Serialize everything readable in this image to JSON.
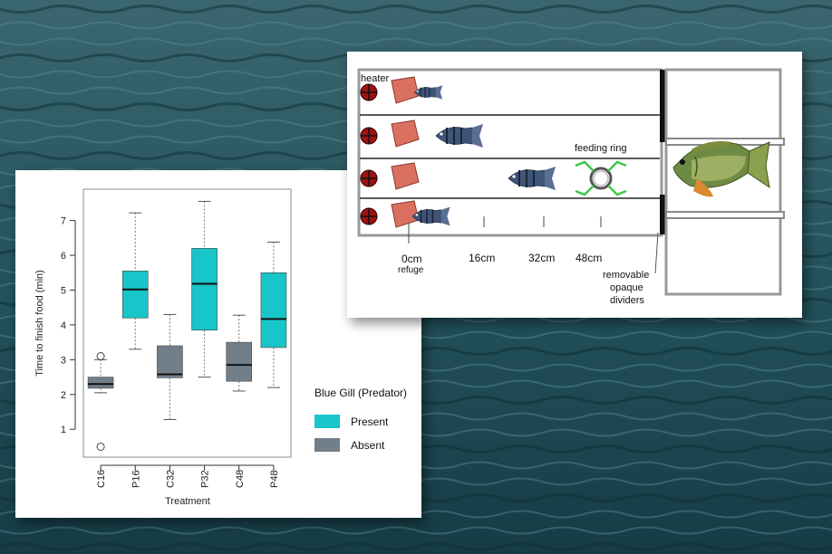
{
  "colors": {
    "present": "#18c5c8",
    "absent": "#717f8b",
    "water_dark": "#173f4a",
    "water_light": "#3c6b74",
    "ring_lines": "#3ec84a",
    "refuge": "#d97060",
    "heater": "#9c1313"
  },
  "chart_data": {
    "type": "box",
    "xlabel": "Treatment",
    "ylabel": "Time to finish food (min)",
    "ylim": [
      0.2,
      7.9
    ],
    "yticks": [
      1,
      2,
      3,
      4,
      5,
      6,
      7
    ],
    "grid": false,
    "legend_position": "right",
    "legend": {
      "title": "Blue Gill (Predator)",
      "entries": [
        {
          "label": "Present",
          "color": "#18c5c8"
        },
        {
          "label": "Absent",
          "color": "#717f8b"
        }
      ]
    },
    "boxes": [
      {
        "category": "C16",
        "group": "Absent",
        "whisker_low": 2.05,
        "q1": 2.18,
        "median": 2.3,
        "q3": 2.5,
        "whisker_high": 3.0,
        "outliers": [
          3.1,
          0.5
        ]
      },
      {
        "category": "P16",
        "group": "Present",
        "whisker_low": 3.3,
        "q1": 4.2,
        "median": 5.02,
        "q3": 5.55,
        "whisker_high": 7.22,
        "outliers": []
      },
      {
        "category": "C32",
        "group": "Absent",
        "whisker_low": 1.28,
        "q1": 2.48,
        "median": 2.58,
        "q3": 3.4,
        "whisker_high": 4.3,
        "outliers": []
      },
      {
        "category": "P32",
        "group": "Present",
        "whisker_low": 2.5,
        "q1": 3.85,
        "median": 5.18,
        "q3": 6.2,
        "whisker_high": 7.55,
        "outliers": []
      },
      {
        "category": "C48",
        "group": "Absent",
        "whisker_low": 2.1,
        "q1": 2.38,
        "median": 2.85,
        "q3": 3.5,
        "whisker_high": 4.28,
        "outliers": []
      },
      {
        "category": "P48",
        "group": "Present",
        "whisker_low": 2.2,
        "q1": 3.35,
        "median": 4.17,
        "q3": 5.5,
        "whisker_high": 6.38,
        "outliers": []
      }
    ]
  },
  "diagram": {
    "labels": {
      "heater": "heater",
      "feeding_ring": "feeding ring",
      "d0": "0cm",
      "refuge": "refuge",
      "d16": "16cm",
      "d32": "32cm",
      "d48": "48cm",
      "dividers_1": "removable",
      "dividers_2": "opaque",
      "dividers_3": "dividers"
    }
  }
}
